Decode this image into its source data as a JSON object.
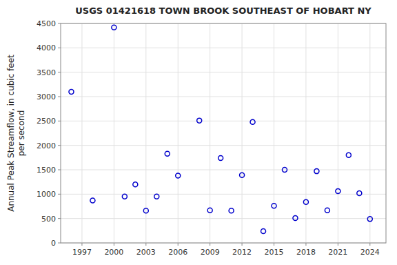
{
  "chart_data": {
    "type": "scatter",
    "title": "USGS 01421618 TOWN BROOK SOUTHEAST OF HOBART NY",
    "y_label": [
      "Annual Peak Streamflow, in cubic feet",
      "per second"
    ],
    "x": [
      1996,
      1998,
      2000,
      2001,
      2002,
      2003,
      2004,
      2005,
      2006,
      2008,
      2009,
      2010,
      2011,
      2012,
      2013,
      2014,
      2015,
      2016,
      2017,
      2018,
      2019,
      2020,
      2021,
      2022,
      2023,
      2024
    ],
    "values": [
      3100,
      870,
      4420,
      950,
      1200,
      660,
      950,
      1830,
      1380,
      2510,
      670,
      1740,
      660,
      1390,
      2480,
      240,
      760,
      1500,
      510,
      840,
      1470,
      670,
      1060,
      1800,
      1020,
      490
    ],
    "color": "#0000CC",
    "marker": "circle",
    "xlim": [
      1995.0,
      2025.5
    ],
    "ylim": [
      0,
      4500
    ],
    "xticks": [
      1997,
      2000,
      2003,
      2006,
      2009,
      2012,
      2015,
      2018,
      2021,
      2024
    ],
    "yticks": [
      0,
      500,
      1000,
      1500,
      2000,
      2500,
      3000,
      3500,
      4000,
      4500
    ],
    "grid": true
  }
}
